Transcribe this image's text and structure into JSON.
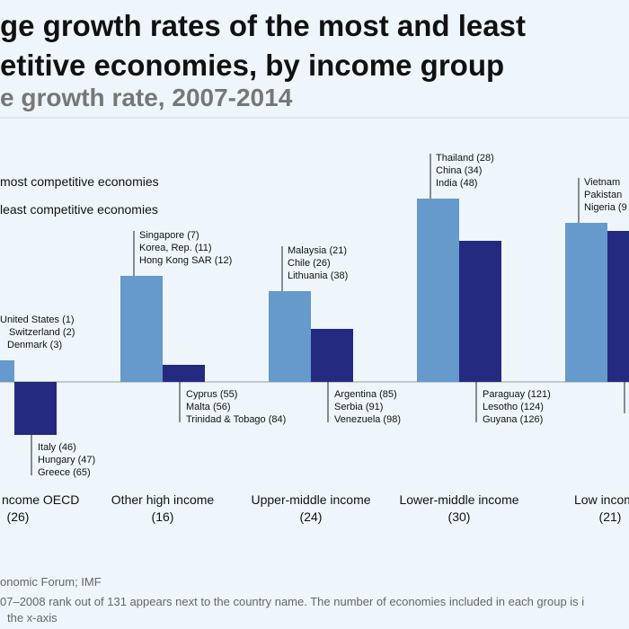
{
  "chart_data": {
    "type": "bar",
    "title": [
      "ge growth rates of the most and least",
      "etitive economies, by income group"
    ],
    "subtitle": "e growth rate, 2007-2014",
    "categories": [
      "ncome OECD",
      "Other high income",
      "Upper-middle income",
      "Lower-middle income",
      "Low incom"
    ],
    "category_counts": [
      "(26)",
      "(16)",
      "(24)",
      "(30)",
      "(21)"
    ],
    "series": [
      {
        "name": "most competitive economies",
        "color": "#6699cc",
        "values": [
          1.2,
          5.9,
          5.05,
          10.2,
          8.85
        ]
      },
      {
        "name": "least competitive economies",
        "color": "#232a80",
        "values": [
          -2.95,
          0.95,
          2.95,
          7.85,
          8.4
        ]
      }
    ],
    "annotations_top": [
      [
        "United States (1)",
        "Switzerland (2)",
        "Denmark (3)"
      ],
      [
        "Singapore (7)",
        "Korea, Rep. (11)",
        "Hong Kong SAR (12)"
      ],
      [
        "Malaysia (21)",
        "Chile (26)",
        "Lithuania (38)"
      ],
      [
        "Thailand (28)",
        "China (34)",
        "India (48)"
      ],
      [
        "Vietnam",
        "Pakistan",
        "Nigeria (9"
      ]
    ],
    "annotations_bottom": [
      [
        "Italy (46)",
        "Hungary (47)",
        "Greece (65)"
      ],
      [
        "Cyprus (55)",
        "Malta (56)",
        "Trinidad & Tobago (84)"
      ],
      [
        "Argentina (85)",
        "Serbia (91)",
        "Venezuela (98)"
      ],
      [
        "Paraguay (121)",
        "Lesotho (124)",
        "Guyana (126)"
      ],
      []
    ],
    "footer": [
      "onomic Forum; IMF",
      "07–2008 rank out of 131 appears next to the country name. The number of economies included in each group is i",
      "the x-axis"
    ]
  }
}
